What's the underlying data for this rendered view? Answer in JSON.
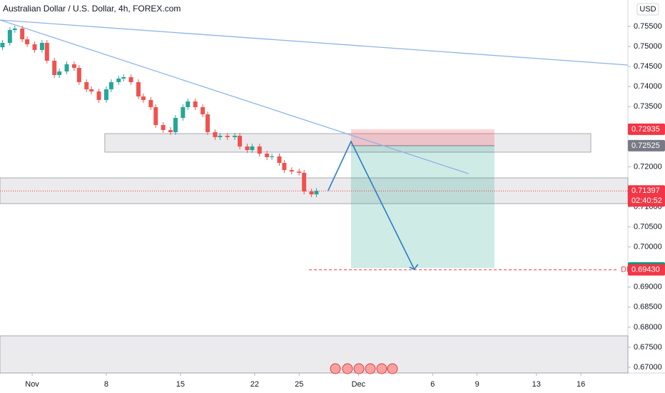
{
  "chart_data": {
    "type": "candlestick",
    "title": "Australian Dollar / U.S. Dollar, 4h, FOREX.com",
    "currency": "USD",
    "xlim": [
      -13,
      241
    ],
    "ylim": [
      0.66857,
      0.76159
    ],
    "grid": false,
    "up_color": "#26a69a",
    "down_color": "#ef5350",
    "xticks": [
      {
        "value": 0,
        "label": "Nov"
      },
      {
        "value": 30,
        "label": "8"
      },
      {
        "value": 60,
        "label": "15"
      },
      {
        "value": 90,
        "label": "22"
      },
      {
        "value": 108,
        "label": "25"
      },
      {
        "value": 132,
        "label": "Dec"
      },
      {
        "value": 162,
        "label": "6"
      },
      {
        "value": 180,
        "label": "9"
      },
      {
        "value": 204,
        "label": "13"
      },
      {
        "value": 222,
        "label": "16"
      }
    ],
    "yticks": [
      {
        "value": 0.755,
        "label": "0.75500"
      },
      {
        "value": 0.75,
        "label": "0.75000"
      },
      {
        "value": 0.745,
        "label": "0.74500"
      },
      {
        "value": 0.74,
        "label": "0.74000"
      },
      {
        "value": 0.735,
        "label": "0.73500"
      },
      {
        "value": 0.72,
        "label": "0.72000"
      },
      {
        "value": 0.71,
        "label": "0.71000"
      },
      {
        "value": 0.705,
        "label": "0.70500"
      },
      {
        "value": 0.7,
        "label": "0.70000"
      },
      {
        "value": 0.69,
        "label": "0.69000"
      },
      {
        "value": 0.685,
        "label": "0.68500"
      },
      {
        "value": 0.68,
        "label": "0.68000"
      },
      {
        "value": 0.675,
        "label": "0.67500"
      },
      {
        "value": 0.67,
        "label": "0.67000"
      }
    ],
    "candles": {
      "x": [
        -12,
        -9,
        -7,
        -4,
        -2,
        1,
        4,
        6,
        9,
        11,
        14,
        17,
        19,
        22,
        24,
        27,
        30,
        32,
        35,
        37,
        40,
        43,
        45,
        48,
        50,
        53,
        56,
        58,
        61,
        63,
        66,
        69,
        71,
        74,
        76,
        79,
        82,
        84,
        87,
        89,
        92,
        95,
        97,
        100,
        102,
        105,
        108,
        110,
        113,
        115
      ],
      "open": [
        0.7498,
        0.7509,
        0.75411,
        0.75447,
        0.75179,
        0.75055,
        0.74912,
        0.7509,
        0.74645,
        0.74288,
        0.74377,
        0.74556,
        0.74466,
        0.7411,
        0.73932,
        0.73878,
        0.73665,
        0.73932,
        0.7411,
        0.74199,
        0.74235,
        0.7411,
        0.73754,
        0.73665,
        0.73486,
        0.73041,
        0.72916,
        0.72863,
        0.73219,
        0.73486,
        0.73629,
        0.73486,
        0.73308,
        0.72863,
        0.72738,
        0.72774,
        0.72738,
        0.72774,
        0.72506,
        0.72417,
        0.72506,
        0.72328,
        0.72239,
        0.7226,
        0.72096,
        0.71918,
        0.71882,
        0.7185,
        0.71383,
        0.71312
      ],
      "high": [
        0.7516,
        0.75481,
        0.75517,
        0.75517,
        0.75249,
        0.75125,
        0.7516,
        0.7516,
        0.74715,
        0.74447,
        0.74626,
        0.74626,
        0.74536,
        0.7418,
        0.74002,
        0.73948,
        0.74002,
        0.7418,
        0.74269,
        0.74305,
        0.74305,
        0.7418,
        0.73824,
        0.73735,
        0.73556,
        0.73111,
        0.72986,
        0.73289,
        0.73556,
        0.73699,
        0.73699,
        0.73556,
        0.73378,
        0.72933,
        0.72844,
        0.72844,
        0.72844,
        0.72844,
        0.72576,
        0.72576,
        0.72576,
        0.72398,
        0.7233,
        0.7233,
        0.72166,
        0.71988,
        0.71952,
        0.7192,
        0.71453,
        0.71467
      ],
      "low": [
        0.7491,
        0.7502,
        0.75341,
        0.75109,
        0.74985,
        0.74842,
        0.74842,
        0.74575,
        0.74218,
        0.74218,
        0.74307,
        0.74396,
        0.7404,
        0.73862,
        0.73808,
        0.73595,
        0.73595,
        0.73862,
        0.7404,
        0.74129,
        0.7404,
        0.73684,
        0.73595,
        0.73416,
        0.72971,
        0.72846,
        0.72793,
        0.72793,
        0.73149,
        0.73416,
        0.73416,
        0.73238,
        0.72793,
        0.72668,
        0.72668,
        0.72668,
        0.72668,
        0.72436,
        0.72347,
        0.72347,
        0.72258,
        0.72169,
        0.72169,
        0.72026,
        0.71848,
        0.71812,
        0.7178,
        0.71313,
        0.71242,
        0.71242
      ],
      "close": [
        0.7509,
        0.75411,
        0.75447,
        0.75179,
        0.75055,
        0.74912,
        0.7509,
        0.74645,
        0.74288,
        0.74377,
        0.74556,
        0.74466,
        0.7411,
        0.73932,
        0.73878,
        0.73665,
        0.73932,
        0.7411,
        0.74199,
        0.74235,
        0.7411,
        0.73754,
        0.73665,
        0.73486,
        0.73041,
        0.72916,
        0.72863,
        0.73219,
        0.73486,
        0.73629,
        0.73486,
        0.73308,
        0.72863,
        0.72738,
        0.72774,
        0.72738,
        0.72774,
        0.72506,
        0.72417,
        0.72506,
        0.72328,
        0.72239,
        0.7226,
        0.72096,
        0.71918,
        0.71882,
        0.7185,
        0.71383,
        0.71312,
        0.71397
      ]
    },
    "zones": [
      {
        "x0": 29.4,
        "x1": 226,
        "top": 0.72827,
        "bottom": 0.72364
      },
      {
        "x0": -13,
        "x1": 241,
        "top": 0.71722,
        "bottom": 0.71081
      },
      {
        "x0": -13,
        "x1": 241,
        "top": 0.67784,
        "bottom": 0.66857
      }
    ],
    "trendlines": [
      {
        "x": [
          -13,
          241
        ],
        "y": [
          0.7566,
          0.74538
        ]
      },
      {
        "x": [
          -13,
          176.5
        ],
        "y": [
          0.7566,
          0.71829
        ]
      }
    ],
    "position": {
      "x0": 129,
      "x1": 187,
      "entry": 0.72525,
      "stop": 0.72935,
      "target": 0.69477
    },
    "projection": {
      "x": [
        119.7,
        129,
        154.6
      ],
      "y": [
        0.71401,
        0.72631,
        0.69441
      ]
    },
    "dl_line": {
      "x0": 112,
      "x1": 237,
      "value": 0.6943,
      "label": "DL"
    },
    "price_tags": [
      {
        "price": 0.72935,
        "color": "#f23645"
      },
      {
        "price": 0.72525,
        "color": "#787b86"
      },
      {
        "price": 0.71397,
        "color": "#f23645",
        "countdown": "02:40:52"
      },
      {
        "price": 0.69477,
        "color": "#089981"
      },
      {
        "price": {
          "value": 0.6943,
          "label": "0.69430"
        },
        "color": "#f23645"
      }
    ]
  }
}
